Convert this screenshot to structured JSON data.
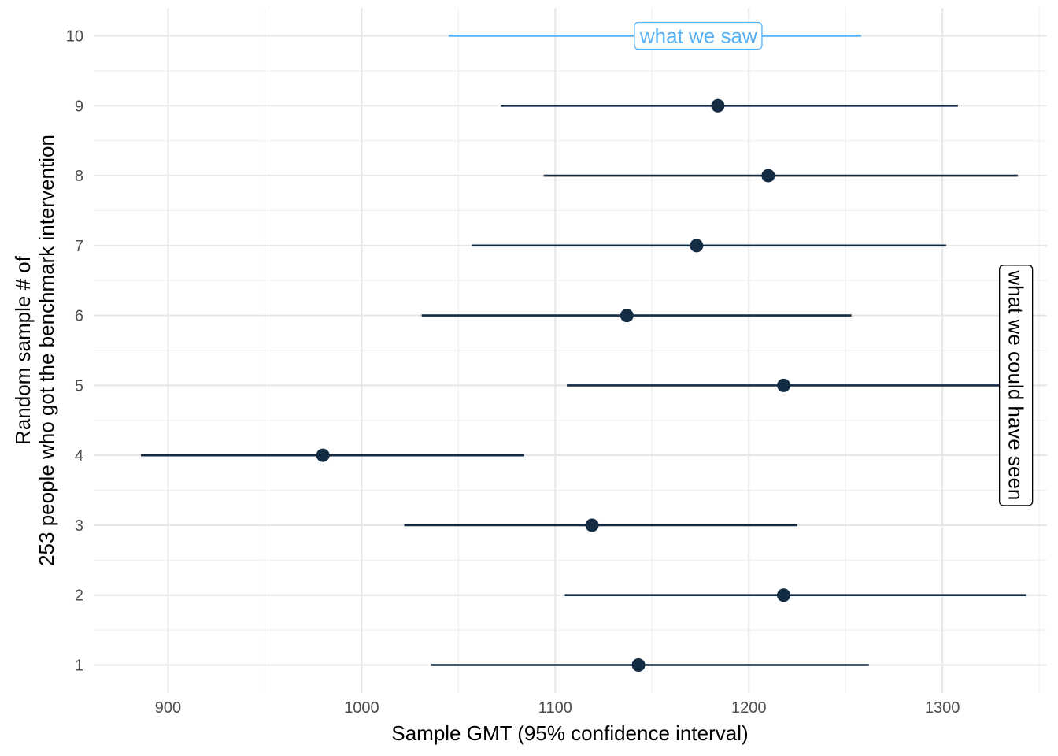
{
  "chart_data": {
    "type": "scatter",
    "subtype": "point-range",
    "title": "",
    "xlabel": "Sample GMT (95% confidence interval)",
    "ylabel_lines": [
      "Random sample # of",
      "253 people who got the benchmark intervention"
    ],
    "xlim": [
      862,
      1354
    ],
    "ylim": [
      0.6,
      10.4
    ],
    "x_ticks": [
      900,
      1000,
      1100,
      1200,
      1300
    ],
    "x_tick_labels": [
      "900",
      "1000",
      "1100",
      "1200",
      "1300"
    ],
    "y_ticks": [
      1,
      2,
      3,
      4,
      5,
      6,
      7,
      8,
      9,
      10
    ],
    "y_tick_labels": [
      "1",
      "2",
      "3",
      "4",
      "5",
      "6",
      "7",
      "8",
      "9",
      "10"
    ],
    "grid": true,
    "theme": "minimal",
    "colors": {
      "default": "#132B43",
      "highlight": "#56B1F7",
      "grid": "#e6e6e6"
    },
    "points": [
      {
        "sample": 1,
        "gmt": 1143,
        "lower": 1036,
        "upper": 1262
      },
      {
        "sample": 2,
        "gmt": 1218,
        "lower": 1105,
        "upper": 1343
      },
      {
        "sample": 3,
        "gmt": 1119,
        "lower": 1022,
        "upper": 1225
      },
      {
        "sample": 4,
        "gmt": 980,
        "lower": 886,
        "upper": 1084
      },
      {
        "sample": 5,
        "gmt": 1218,
        "lower": 1106,
        "upper": 1340
      },
      {
        "sample": 6,
        "gmt": 1137,
        "lower": 1031,
        "upper": 1253
      },
      {
        "sample": 7,
        "gmt": 1173,
        "lower": 1057,
        "upper": 1302
      },
      {
        "sample": 8,
        "gmt": 1210,
        "lower": 1094,
        "upper": 1339
      },
      {
        "sample": 9,
        "gmt": 1184,
        "lower": 1072,
        "upper": 1308
      },
      {
        "sample": 10,
        "gmt": 1147,
        "lower": 1045,
        "upper": 1258,
        "highlight": true
      }
    ],
    "annotations": [
      {
        "text": "what we saw",
        "x": 1174,
        "y": 10,
        "color": "#56B1F7",
        "orientation": "horizontal"
      },
      {
        "text": "what we could have seen",
        "x": 1338,
        "y": 5,
        "color": "#000000",
        "orientation": "vertical"
      }
    ]
  }
}
